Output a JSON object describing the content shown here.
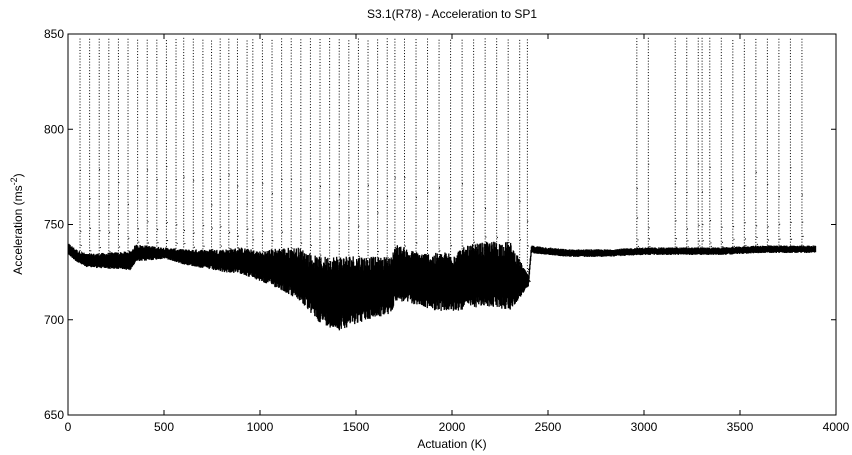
{
  "chart_data": {
    "type": "scatter",
    "title": "S3.1(R78) - Acceleration to SP1",
    "xlabel": "Actuation (K)",
    "ylabel": "Acceleration (ms",
    "ylabel_exponent": "-2",
    "ylabel_close": ")",
    "xlim": [
      0,
      4000
    ],
    "ylim": [
      650,
      850
    ],
    "xticks": [
      "0",
      "500",
      "1000",
      "1500",
      "2000",
      "2500",
      "3000",
      "3500",
      "4000"
    ],
    "yticks": [
      "650",
      "700",
      "750",
      "800",
      "850"
    ],
    "grid": false,
    "legend": "none",
    "marker_color": "#000000",
    "series": [
      {
        "baseline_profile": [
          [
            0,
            737
          ],
          [
            50,
            733
          ],
          [
            100,
            731
          ],
          [
            200,
            731
          ],
          [
            320,
            731
          ],
          [
            350,
            735
          ],
          [
            500,
            735
          ],
          [
            600,
            733
          ],
          [
            700,
            732
          ],
          [
            800,
            731
          ],
          [
            900,
            731
          ],
          [
            1000,
            728
          ],
          [
            1100,
            727
          ],
          [
            1200,
            724
          ],
          [
            1300,
            716
          ],
          [
            1400,
            714
          ],
          [
            1500,
            716
          ],
          [
            1600,
            717
          ],
          [
            1680,
            718
          ],
          [
            1700,
            725
          ],
          [
            1800,
            722
          ],
          [
            1900,
            720
          ],
          [
            2000,
            720
          ],
          [
            2100,
            723
          ],
          [
            2200,
            724
          ],
          [
            2300,
            723
          ],
          [
            2395,
            720
          ],
          [
            2410,
            737
          ],
          [
            2500,
            736
          ],
          [
            2600,
            735
          ],
          [
            2800,
            735
          ],
          [
            3000,
            736
          ],
          [
            3200,
            736
          ],
          [
            3400,
            736
          ],
          [
            3600,
            737
          ],
          [
            3800,
            737
          ],
          [
            3890,
            737
          ]
        ],
        "spread_profile": [
          [
            0,
            3
          ],
          [
            320,
            5
          ],
          [
            500,
            3
          ],
          [
            800,
            6
          ],
          [
            1000,
            8
          ],
          [
            1200,
            14
          ],
          [
            1400,
            20
          ],
          [
            1600,
            16
          ],
          [
            1800,
            14
          ],
          [
            2000,
            16
          ],
          [
            2300,
            18
          ],
          [
            2400,
            2
          ],
          [
            3890,
            2
          ]
        ],
        "spike_positions": [
          60,
          110,
          160,
          210,
          260,
          310,
          360,
          410,
          460,
          510,
          560,
          600,
          650,
          700,
          745,
          790,
          835,
          880,
          930,
          960,
          1010,
          1060,
          1110,
          1160,
          1210,
          1260,
          1310,
          1360,
          1410,
          1460,
          1510,
          1560,
          1610,
          1660,
          1700,
          1750,
          1810,
          1870,
          1930,
          1990,
          2050,
          2110,
          2170,
          2230,
          2290,
          2350,
          2390,
          2960,
          3020,
          3160,
          3220,
          3280,
          3300,
          3340,
          3400,
          3460,
          3520,
          3580,
          3640,
          3700,
          3760,
          3820
        ],
        "spike_peak": 850
      }
    ]
  }
}
